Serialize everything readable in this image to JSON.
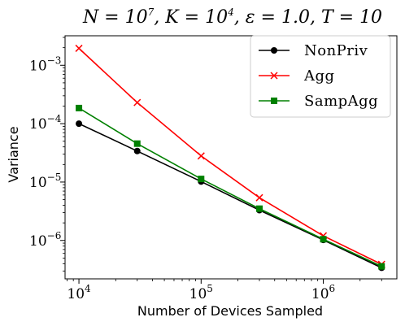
{
  "chart_data": {
    "type": "line",
    "title": "N = 10^7, K = 10^4, ε = 1.0, T = 10",
    "title_parts": {
      "n_base": "N = 10",
      "n_exp": "7",
      "k_base": "K = 10",
      "k_exp": "4",
      "eps": "ε = 1.0",
      "t": "T = 10"
    },
    "xlabel": "Number of Devices Sampled",
    "ylabel": "Variance",
    "xscale": "log",
    "yscale": "log",
    "xlim": [
      7700,
      4000000
    ],
    "ylim": [
      2.2e-07,
      0.0032
    ],
    "xticks": [
      {
        "value": 10000,
        "exp": "4"
      },
      {
        "value": 100000,
        "exp": "5"
      },
      {
        "value": 1000000,
        "exp": "6"
      }
    ],
    "yticks": [
      {
        "value": 1e-06,
        "exp": "−6"
      },
      {
        "value": 1e-05,
        "exp": "−5"
      },
      {
        "value": 0.0001,
        "exp": "−4"
      },
      {
        "value": 0.001,
        "exp": "−3"
      }
    ],
    "tick_base": "10",
    "grid": false,
    "legend_position": "top-right",
    "x": [
      10000,
      30000,
      100000,
      300000,
      1000000,
      3000000
    ],
    "series": [
      {
        "name": "NonPriv",
        "color": "#000000",
        "marker": "circle",
        "values": [
          0.0001,
          3.4e-05,
          1.02e-05,
          3.3e-06,
          1.02e-06,
          3.4e-07
        ]
      },
      {
        "name": "Agg",
        "color": "#ff0000",
        "marker": "x",
        "values": [
          0.00195,
          0.00023,
          2.8e-05,
          5.4e-06,
          1.2e-06,
          3.9e-07
        ]
      },
      {
        "name": "SampAgg",
        "color": "#008000",
        "marker": "square",
        "values": [
          0.000185,
          4.55e-05,
          1.13e-05,
          3.5e-06,
          1.05e-06,
          3.6e-07
        ]
      }
    ]
  }
}
